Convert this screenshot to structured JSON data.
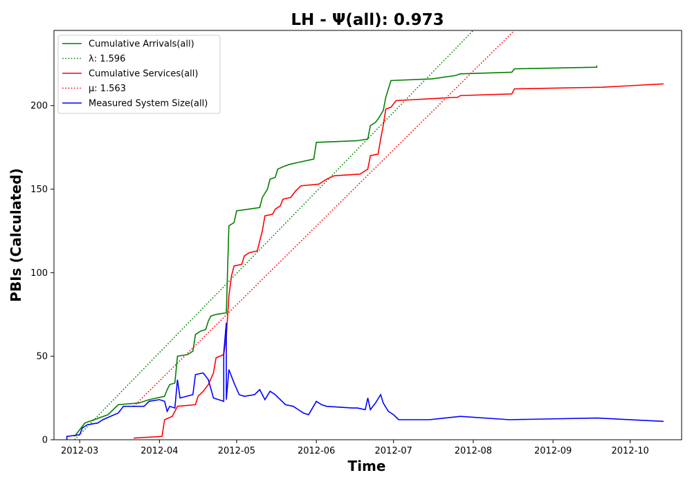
{
  "chart_data": {
    "type": "line",
    "title": "LH -  Ψ(all): 0.973",
    "xlabel": "Time",
    "ylabel": "PBIs (Calculated)",
    "x_type": "date",
    "xlim": [
      "2012-02-20",
      "2012-10-21"
    ],
    "ylim": [
      0,
      245
    ],
    "x_ticks": [
      "2012-03",
      "2012-04",
      "2012-05",
      "2012-06",
      "2012-07",
      "2012-08",
      "2012-09",
      "2012-10"
    ],
    "y_ticks": [
      0,
      50,
      100,
      150,
      200
    ],
    "grid": false,
    "legend": {
      "placement": "top-left"
    },
    "series": [
      {
        "name": "Cumulative Arrivals(all)",
        "color": "#008000",
        "dash": "solid",
        "points": [
          [
            "2012-02-28",
            2
          ],
          [
            "2012-03-03",
            10
          ],
          [
            "2012-03-12",
            15
          ],
          [
            "2012-03-16",
            21
          ],
          [
            "2012-03-24",
            22
          ],
          [
            "2012-03-28",
            24
          ],
          [
            "2012-04-03",
            26
          ],
          [
            "2012-04-04",
            30
          ],
          [
            "2012-04-05",
            33
          ],
          [
            "2012-04-07",
            34
          ],
          [
            "2012-04-08",
            50
          ],
          [
            "2012-04-12",
            51
          ],
          [
            "2012-04-14",
            53
          ],
          [
            "2012-04-15",
            63
          ],
          [
            "2012-04-17",
            65
          ],
          [
            "2012-04-19",
            66
          ],
          [
            "2012-04-20",
            71
          ],
          [
            "2012-04-21",
            74
          ],
          [
            "2012-04-23",
            75
          ],
          [
            "2012-04-27",
            76
          ],
          [
            "2012-04-28",
            128
          ],
          [
            "2012-04-30",
            130
          ],
          [
            "2012-05-01",
            137
          ],
          [
            "2012-05-10",
            139
          ],
          [
            "2012-05-11",
            145
          ],
          [
            "2012-05-13",
            150
          ],
          [
            "2012-05-14",
            156
          ],
          [
            "2012-05-16",
            157
          ],
          [
            "2012-05-17",
            162
          ],
          [
            "2012-05-20",
            164
          ],
          [
            "2012-05-22",
            165
          ],
          [
            "2012-05-25",
            166
          ],
          [
            "2012-05-31",
            168
          ],
          [
            "2012-06-01",
            178
          ],
          [
            "2012-06-17",
            179
          ],
          [
            "2012-06-21",
            180
          ],
          [
            "2012-06-22",
            188
          ],
          [
            "2012-06-24",
            190
          ],
          [
            "2012-06-25",
            192
          ],
          [
            "2012-06-27",
            197
          ],
          [
            "2012-06-28",
            205
          ],
          [
            "2012-06-29",
            210
          ],
          [
            "2012-06-30",
            215
          ],
          [
            "2012-07-16",
            216
          ],
          [
            "2012-07-25",
            218
          ],
          [
            "2012-07-27",
            219
          ],
          [
            "2012-08-16",
            220
          ],
          [
            "2012-08-17",
            222
          ],
          [
            "2012-09-18",
            223
          ],
          [
            "2012-09-18",
            224
          ]
        ]
      },
      {
        "name": "λ: 1.596",
        "color": "#008000",
        "dash": "dotted",
        "points": [
          [
            "2012-02-28",
            0
          ],
          [
            "2012-08-01",
            245
          ]
        ]
      },
      {
        "name": "Cumulative Services(all)",
        "color": "#ff0000",
        "dash": "solid",
        "points": [
          [
            "2012-03-22",
            1
          ],
          [
            "2012-04-02",
            2
          ],
          [
            "2012-04-03",
            12
          ],
          [
            "2012-04-06",
            14
          ],
          [
            "2012-04-08",
            20
          ],
          [
            "2012-04-15",
            21
          ],
          [
            "2012-04-16",
            26
          ],
          [
            "2012-04-18",
            29
          ],
          [
            "2012-04-20",
            33
          ],
          [
            "2012-04-22",
            40
          ],
          [
            "2012-04-23",
            49
          ],
          [
            "2012-04-26",
            51
          ],
          [
            "2012-04-27",
            62
          ],
          [
            "2012-04-28",
            86
          ],
          [
            "2012-04-29",
            98
          ],
          [
            "2012-04-30",
            104
          ],
          [
            "2012-05-03",
            105
          ],
          [
            "2012-05-04",
            110
          ],
          [
            "2012-05-06",
            112
          ],
          [
            "2012-05-09",
            113
          ],
          [
            "2012-05-11",
            125
          ],
          [
            "2012-05-12",
            134
          ],
          [
            "2012-05-15",
            135
          ],
          [
            "2012-05-16",
            138
          ],
          [
            "2012-05-18",
            140
          ],
          [
            "2012-05-19",
            144
          ],
          [
            "2012-05-22",
            145
          ],
          [
            "2012-05-24",
            149
          ],
          [
            "2012-05-26",
            152
          ],
          [
            "2012-06-02",
            153
          ],
          [
            "2012-06-05",
            156
          ],
          [
            "2012-06-08",
            158
          ],
          [
            "2012-06-18",
            159
          ],
          [
            "2012-06-21",
            162
          ],
          [
            "2012-06-22",
            170
          ],
          [
            "2012-06-25",
            171
          ],
          [
            "2012-06-26",
            180
          ],
          [
            "2012-06-27",
            188
          ],
          [
            "2012-06-28",
            198
          ],
          [
            "2012-06-30",
            199
          ],
          [
            "2012-07-02",
            203
          ],
          [
            "2012-07-26",
            205
          ],
          [
            "2012-07-27",
            206
          ],
          [
            "2012-08-16",
            207
          ],
          [
            "2012-08-17",
            210
          ],
          [
            "2012-09-20",
            211
          ],
          [
            "2012-10-14",
            213
          ]
        ]
      },
      {
        "name": "μ: 1.563",
        "color": "#ff0000",
        "dash": "dotted",
        "points": [
          [
            "2012-03-22",
            20
          ],
          [
            "2012-08-17",
            245
          ]
        ]
      },
      {
        "name": "Measured System Size(all)",
        "color": "#0000ff",
        "dash": "solid",
        "points": [
          [
            "2012-02-25",
            0
          ],
          [
            "2012-02-25",
            2
          ],
          [
            "2012-03-01",
            3
          ],
          [
            "2012-03-02",
            7
          ],
          [
            "2012-03-04",
            9
          ],
          [
            "2012-03-08",
            10
          ],
          [
            "2012-03-10",
            12
          ],
          [
            "2012-03-13",
            14
          ],
          [
            "2012-03-16",
            16
          ],
          [
            "2012-03-18",
            20
          ],
          [
            "2012-03-26",
            20
          ],
          [
            "2012-03-28",
            23
          ],
          [
            "2012-04-01",
            24
          ],
          [
            "2012-04-03",
            23
          ],
          [
            "2012-04-04",
            17
          ],
          [
            "2012-04-05",
            20
          ],
          [
            "2012-04-07",
            19
          ],
          [
            "2012-04-08",
            36
          ],
          [
            "2012-04-09",
            25
          ],
          [
            "2012-04-14",
            27
          ],
          [
            "2012-04-15",
            39
          ],
          [
            "2012-04-18",
            40
          ],
          [
            "2012-04-20",
            36
          ],
          [
            "2012-04-22",
            25
          ],
          [
            "2012-04-24",
            24
          ],
          [
            "2012-04-26",
            23
          ],
          [
            "2012-04-26",
            52
          ],
          [
            "2012-04-27",
            70
          ],
          [
            "2012-04-27",
            24
          ],
          [
            "2012-04-28",
            42
          ],
          [
            "2012-04-30",
            34
          ],
          [
            "2012-05-02",
            27
          ],
          [
            "2012-05-04",
            26
          ],
          [
            "2012-05-08",
            27
          ],
          [
            "2012-05-10",
            30
          ],
          [
            "2012-05-12",
            24
          ],
          [
            "2012-05-14",
            29
          ],
          [
            "2012-05-16",
            27
          ],
          [
            "2012-05-20",
            21
          ],
          [
            "2012-05-23",
            20
          ],
          [
            "2012-05-25",
            18
          ],
          [
            "2012-05-27",
            16
          ],
          [
            "2012-05-29",
            15
          ],
          [
            "2012-06-01",
            23
          ],
          [
            "2012-06-03",
            21
          ],
          [
            "2012-06-05",
            20
          ],
          [
            "2012-06-15",
            19
          ],
          [
            "2012-06-17",
            19
          ],
          [
            "2012-06-20",
            18
          ],
          [
            "2012-06-21",
            25
          ],
          [
            "2012-06-22",
            18
          ],
          [
            "2012-06-24",
            22
          ],
          [
            "2012-06-26",
            27
          ],
          [
            "2012-06-27",
            22
          ],
          [
            "2012-06-29",
            17
          ],
          [
            "2012-07-01",
            15
          ],
          [
            "2012-07-03",
            12
          ],
          [
            "2012-07-15",
            12
          ],
          [
            "2012-07-27",
            14
          ],
          [
            "2012-08-15",
            12
          ],
          [
            "2012-09-18",
            13
          ],
          [
            "2012-10-14",
            11
          ]
        ]
      }
    ]
  }
}
